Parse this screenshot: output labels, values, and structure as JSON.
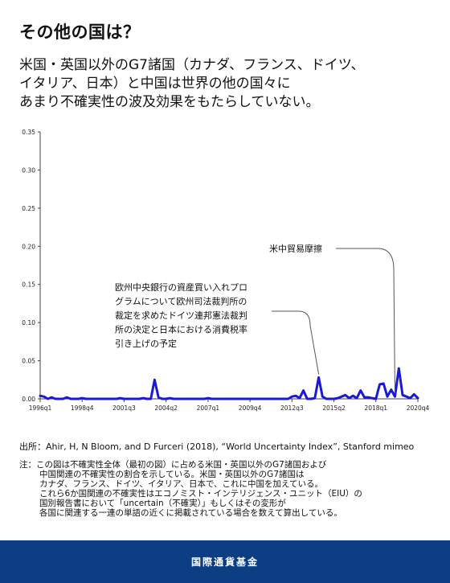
{
  "header": {
    "title": "その他の国は？",
    "subtitle_lines": [
      "米国・英国以外のG7諸国（カナダ、フランス、ドイツ、",
      "イタリア、日本）と中国は世界の他の国々に",
      "あまり不確実性の波及効果をもたらしていない。"
    ]
  },
  "chart_data": {
    "type": "line",
    "title": "",
    "xlabel": "",
    "ylabel": "",
    "ylim": [
      0,
      0.35
    ],
    "yticks": [
      "0.00",
      "0.05",
      "0.10",
      "0.15",
      "0.20",
      "0.25",
      "0.30",
      "0.35"
    ],
    "xticks": [
      "1996q1",
      "1998q4",
      "2001q3",
      "2004q2",
      "2007q1",
      "2009q4",
      "2012q3",
      "2015q2",
      "2018q1",
      "2020q4"
    ],
    "grid": false,
    "colors": {
      "line": "#1a1ad6",
      "axis": "#444444",
      "annotation": "#555555"
    },
    "series": [
      {
        "x": [
          "1996q1",
          "1996q2",
          "1996q3",
          "1996q4",
          "1997q1",
          "1997q2",
          "1997q3",
          "1997q4",
          "1998q1",
          "1998q2",
          "1998q3",
          "1998q4",
          "1999q1",
          "1999q2",
          "1999q3",
          "1999q4",
          "2000q1",
          "2000q2",
          "2000q3",
          "2000q4",
          "2001q1",
          "2001q2",
          "2001q3",
          "2001q4",
          "2002q1",
          "2002q2",
          "2002q3",
          "2002q4",
          "2003q1",
          "2003q2",
          "2003q3",
          "2003q4",
          "2004q1",
          "2004q2",
          "2004q3",
          "2004q4",
          "2005q1",
          "2005q2",
          "2005q3",
          "2005q4",
          "2006q1",
          "2006q2",
          "2006q3",
          "2006q4",
          "2007q1",
          "2007q2",
          "2007q3",
          "2007q4",
          "2008q1",
          "2008q2",
          "2008q3",
          "2008q4",
          "2009q1",
          "2009q2",
          "2009q3",
          "2009q4",
          "2010q1",
          "2010q2",
          "2010q3",
          "2010q4",
          "2011q1",
          "2011q2",
          "2011q3",
          "2011q4",
          "2012q1",
          "2012q2",
          "2012q3",
          "2012q4",
          "2013q1",
          "2013q2",
          "2013q3",
          "2013q4",
          "2014q1",
          "2014q2",
          "2014q3",
          "2014q4",
          "2015q1",
          "2015q2",
          "2015q3",
          "2015q4",
          "2016q1",
          "2016q2",
          "2016q3",
          "2016q4",
          "2017q1",
          "2017q2",
          "2017q3",
          "2017q4",
          "2018q1",
          "2018q2",
          "2018q3",
          "2018q4",
          "2019q1",
          "2019q2",
          "2019q3",
          "2019q4",
          "2020q1",
          "2020q2",
          "2020q3",
          "2020q4"
        ],
        "values": [
          0.004,
          0.003,
          0,
          0.002,
          0,
          0,
          0,
          0.002,
          0,
          0,
          0,
          0.001,
          0,
          0,
          0,
          0,
          0,
          0,
          0,
          0,
          0,
          0.001,
          0,
          0,
          0,
          0,
          0,
          0.001,
          0,
          0,
          0.025,
          0.002,
          0,
          0,
          0.001,
          0,
          0,
          0,
          0,
          0,
          0,
          0,
          0,
          0,
          0.001,
          0,
          0,
          0,
          0,
          0,
          0,
          0,
          0,
          0,
          0,
          0,
          0,
          0,
          0,
          0,
          0,
          0,
          0,
          0,
          0,
          0,
          0.003,
          0.004,
          0.001,
          0.011,
          0,
          0,
          0.001,
          0.028,
          0.003,
          0,
          0,
          0,
          0.001,
          0.003,
          0.005,
          0.001,
          0.004,
          0.001,
          0.011,
          0.002,
          0.002,
          0.001,
          0,
          0.019,
          0.02,
          0.003,
          0.012,
          0.003,
          0.04,
          0.005,
          0.003,
          0.001,
          0.006,
          0.001
        ]
      }
    ]
  },
  "annotations": {
    "trade": {
      "lines": [
        "米中貿易摩擦"
      ]
    },
    "ecb": {
      "lines": [
        "欧州中央銀行の資産買い入れプロ",
        "グラムについて欧州司法裁判所の",
        "裁定を求めたドイツ連邦憲法裁判",
        "所の決定と日本における消費税率",
        "引き上げの予定"
      ]
    }
  },
  "source": "出所：Ahir, H, N Bloom, and D Furceri (2018), “World Uncertainty Index”, Stanford mimeo",
  "note": {
    "lines": [
      "注：この図は不確実性全体（最初の図）に占める米国・英国以外のG7諸国および",
      "中国関連の不確実性の割合を示している。米国・英国以外のG7諸国は",
      "カナダ、フランス、ドイツ、イタリア、日本で、これに中国を加えている。",
      "これら6か国関連の不確実性はエコノミスト・インテリジェンス・ユニット（EIU）の",
      "国別報告書において「uncertain（不確実）」もしくはその変形が",
      "各国に関連する一連の単語の近くに掲載されている場合を数えて算出している。"
    ]
  },
  "footer": {
    "label": "国際通貨基金"
  }
}
